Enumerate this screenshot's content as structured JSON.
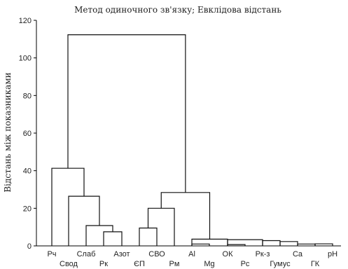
{
  "chart_data": {
    "type": "dendrogram",
    "title": "Метод одиночного зв'язку; Евклідова відстань",
    "xlabel": "",
    "ylabel": "Відстань між показниками",
    "ylim": [
      0,
      120
    ],
    "yticks": [
      0,
      20,
      40,
      60,
      80,
      100,
      120
    ],
    "leaves": [
      "Рч",
      "Свод",
      "Слаб",
      "Рк",
      "Азот",
      "ЄП",
      "СВО",
      "Рм",
      "Al",
      "Mg",
      "ОК",
      "Рс",
      "Рк-з",
      "Гумус",
      "Ca",
      "ГК",
      "pH"
    ],
    "merges": [
      {
        "a": "L10",
        "b": "L11",
        "h": 0.7,
        "id": "m1"
      },
      {
        "a": "L14",
        "b": "L15",
        "h": 1.0,
        "id": "m2"
      },
      {
        "a": "L8",
        "b": "L9",
        "h": 1.0,
        "id": "m3"
      },
      {
        "a": "L15",
        "b": "L16",
        "h": 1.1,
        "id": "m4"
      },
      {
        "a": "L13",
        "b": "L14",
        "h": 2.3,
        "id": "m5"
      },
      {
        "a": "L12",
        "b": "L13",
        "h": 2.8,
        "id": "m6"
      },
      {
        "a": "L10",
        "b": "L12",
        "h": 3.3,
        "id": "m7"
      },
      {
        "a": "L8",
        "b": "L10",
        "h": 3.6,
        "id": "m8"
      },
      {
        "a": "L3",
        "b": "L4",
        "h": 7.5,
        "id": "m9"
      },
      {
        "a": "L5",
        "b": "L6",
        "h": 9.5,
        "id": "m10"
      },
      {
        "a": "L2",
        "b": "m9",
        "h": 10.8,
        "id": "m11"
      },
      {
        "a": "m10",
        "b": "L7",
        "h": 20.0,
        "id": "m12"
      },
      {
        "a": "L1",
        "b": "m11",
        "h": 26.4,
        "id": "m13"
      },
      {
        "a": "m12",
        "b": "m8",
        "h": 28.4,
        "id": "m14"
      },
      {
        "a": "L0",
        "b": "m13",
        "h": 41.3,
        "id": "m15"
      },
      {
        "a": "m15",
        "b": "m14",
        "h": 112.3,
        "id": "m16"
      }
    ]
  }
}
